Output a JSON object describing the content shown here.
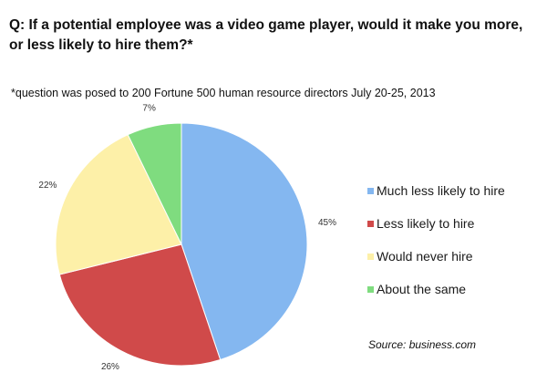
{
  "question": "Q: If a potential employee was a video game player, would it make you more, or less likely to hire them?*",
  "footnote": "*question was posed to 200 Fortune 500 human resource directors July 20-25, 2013",
  "source": "Source: business.com",
  "chart_data": {
    "type": "pie",
    "title": "Q: If a potential employee was a video game player, would it make you more, or less likely to hire them?*",
    "legend_position": "right",
    "slices": [
      {
        "label": "Much less likely to hire",
        "value": 45,
        "display": "45%",
        "color": "#84b7f0"
      },
      {
        "label": "Less likely to hire",
        "value": 26,
        "display": "26%",
        "color": "#d04a4a"
      },
      {
        "label": "Would never hire",
        "value": 22,
        "display": "22%",
        "color": "#fdf0a8"
      },
      {
        "label": "About the same",
        "value": 7,
        "display": "7%",
        "color": "#7fdc7f"
      }
    ]
  }
}
